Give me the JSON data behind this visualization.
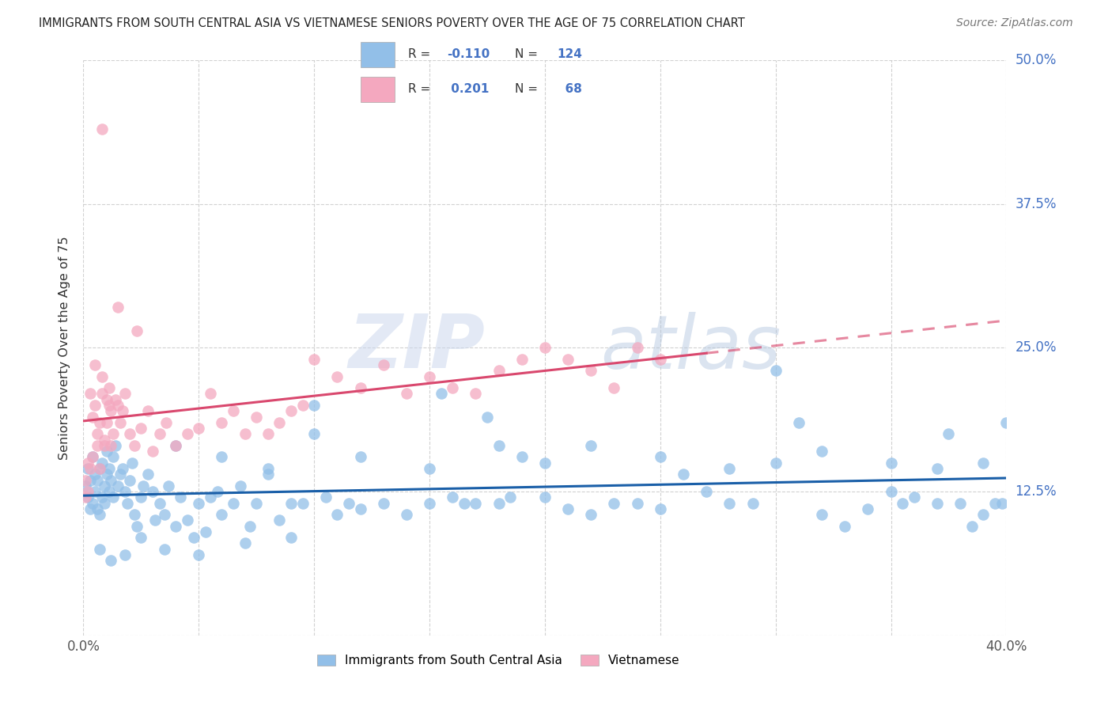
{
  "title": "IMMIGRANTS FROM SOUTH CENTRAL ASIA VS VIETNAMESE SENIORS POVERTY OVER THE AGE OF 75 CORRELATION CHART",
  "source": "Source: ZipAtlas.com",
  "ylabel": "Seniors Poverty Over the Age of 75",
  "xlim": [
    0.0,
    0.4
  ],
  "ylim": [
    0.0,
    0.5
  ],
  "xticks": [
    0.0,
    0.05,
    0.1,
    0.15,
    0.2,
    0.25,
    0.3,
    0.35,
    0.4
  ],
  "yticks": [
    0.0,
    0.125,
    0.25,
    0.375,
    0.5
  ],
  "yticklabels": [
    "",
    "12.5%",
    "25.0%",
    "37.5%",
    "50.0%"
  ],
  "blue_color": "#92bfe8",
  "pink_color": "#f4a8bf",
  "blue_line_color": "#1a5fa8",
  "pink_line_color": "#d9486e",
  "grid_color": "#cccccc",
  "background_color": "#ffffff",
  "watermark_zip": "ZIP",
  "watermark_atlas": "atlas",
  "blue_scatter_x": [
    0.001,
    0.002,
    0.002,
    0.003,
    0.003,
    0.004,
    0.004,
    0.005,
    0.005,
    0.006,
    0.006,
    0.007,
    0.007,
    0.008,
    0.008,
    0.009,
    0.009,
    0.01,
    0.01,
    0.011,
    0.011,
    0.012,
    0.013,
    0.013,
    0.014,
    0.015,
    0.016,
    0.017,
    0.018,
    0.019,
    0.02,
    0.021,
    0.022,
    0.023,
    0.025,
    0.026,
    0.028,
    0.03,
    0.031,
    0.033,
    0.035,
    0.037,
    0.04,
    0.042,
    0.045,
    0.048,
    0.05,
    0.053,
    0.055,
    0.058,
    0.06,
    0.065,
    0.068,
    0.072,
    0.075,
    0.08,
    0.085,
    0.09,
    0.095,
    0.1,
    0.105,
    0.11,
    0.115,
    0.12,
    0.13,
    0.14,
    0.15,
    0.155,
    0.16,
    0.165,
    0.17,
    0.175,
    0.18,
    0.185,
    0.19,
    0.2,
    0.21,
    0.22,
    0.23,
    0.24,
    0.25,
    0.26,
    0.27,
    0.28,
    0.29,
    0.3,
    0.31,
    0.32,
    0.33,
    0.34,
    0.35,
    0.355,
    0.36,
    0.37,
    0.375,
    0.38,
    0.385,
    0.39,
    0.395,
    0.398,
    0.4,
    0.04,
    0.06,
    0.08,
    0.1,
    0.12,
    0.15,
    0.18,
    0.2,
    0.22,
    0.25,
    0.28,
    0.3,
    0.32,
    0.35,
    0.37,
    0.39,
    0.007,
    0.012,
    0.018,
    0.025,
    0.035,
    0.05,
    0.07,
    0.09
  ],
  "blue_scatter_y": [
    0.13,
    0.145,
    0.12,
    0.135,
    0.11,
    0.155,
    0.115,
    0.125,
    0.14,
    0.11,
    0.135,
    0.145,
    0.105,
    0.12,
    0.15,
    0.115,
    0.13,
    0.14,
    0.16,
    0.125,
    0.145,
    0.135,
    0.12,
    0.155,
    0.165,
    0.13,
    0.14,
    0.145,
    0.125,
    0.115,
    0.135,
    0.15,
    0.105,
    0.095,
    0.12,
    0.13,
    0.14,
    0.125,
    0.1,
    0.115,
    0.105,
    0.13,
    0.095,
    0.12,
    0.1,
    0.085,
    0.115,
    0.09,
    0.12,
    0.125,
    0.105,
    0.115,
    0.13,
    0.095,
    0.115,
    0.14,
    0.1,
    0.115,
    0.115,
    0.2,
    0.12,
    0.105,
    0.115,
    0.11,
    0.115,
    0.105,
    0.115,
    0.21,
    0.12,
    0.115,
    0.115,
    0.19,
    0.115,
    0.12,
    0.155,
    0.12,
    0.11,
    0.105,
    0.115,
    0.115,
    0.11,
    0.14,
    0.125,
    0.115,
    0.115,
    0.23,
    0.185,
    0.105,
    0.095,
    0.11,
    0.125,
    0.115,
    0.12,
    0.115,
    0.175,
    0.115,
    0.095,
    0.105,
    0.115,
    0.115,
    0.185,
    0.165,
    0.155,
    0.145,
    0.175,
    0.155,
    0.145,
    0.165,
    0.15,
    0.165,
    0.155,
    0.145,
    0.15,
    0.16,
    0.15,
    0.145,
    0.15,
    0.075,
    0.065,
    0.07,
    0.085,
    0.075,
    0.07,
    0.08,
    0.085
  ],
  "pink_scatter_x": [
    0.001,
    0.001,
    0.002,
    0.002,
    0.003,
    0.003,
    0.004,
    0.004,
    0.005,
    0.005,
    0.006,
    0.006,
    0.007,
    0.007,
    0.008,
    0.008,
    0.009,
    0.009,
    0.01,
    0.01,
    0.011,
    0.011,
    0.012,
    0.012,
    0.013,
    0.014,
    0.015,
    0.016,
    0.017,
    0.018,
    0.02,
    0.022,
    0.025,
    0.028,
    0.03,
    0.033,
    0.036,
    0.04,
    0.045,
    0.05,
    0.055,
    0.06,
    0.065,
    0.07,
    0.075,
    0.08,
    0.085,
    0.09,
    0.095,
    0.1,
    0.11,
    0.12,
    0.13,
    0.14,
    0.15,
    0.16,
    0.17,
    0.18,
    0.19,
    0.2,
    0.21,
    0.22,
    0.23,
    0.24,
    0.25,
    0.008,
    0.015,
    0.023
  ],
  "pink_scatter_y": [
    0.135,
    0.12,
    0.125,
    0.15,
    0.145,
    0.21,
    0.19,
    0.155,
    0.2,
    0.235,
    0.165,
    0.175,
    0.185,
    0.145,
    0.21,
    0.225,
    0.17,
    0.165,
    0.205,
    0.185,
    0.215,
    0.2,
    0.195,
    0.165,
    0.175,
    0.205,
    0.2,
    0.185,
    0.195,
    0.21,
    0.175,
    0.165,
    0.18,
    0.195,
    0.16,
    0.175,
    0.185,
    0.165,
    0.175,
    0.18,
    0.21,
    0.185,
    0.195,
    0.175,
    0.19,
    0.175,
    0.185,
    0.195,
    0.2,
    0.24,
    0.225,
    0.215,
    0.235,
    0.21,
    0.225,
    0.215,
    0.21,
    0.23,
    0.24,
    0.25,
    0.24,
    0.23,
    0.215,
    0.25,
    0.24,
    0.44,
    0.285,
    0.265
  ]
}
